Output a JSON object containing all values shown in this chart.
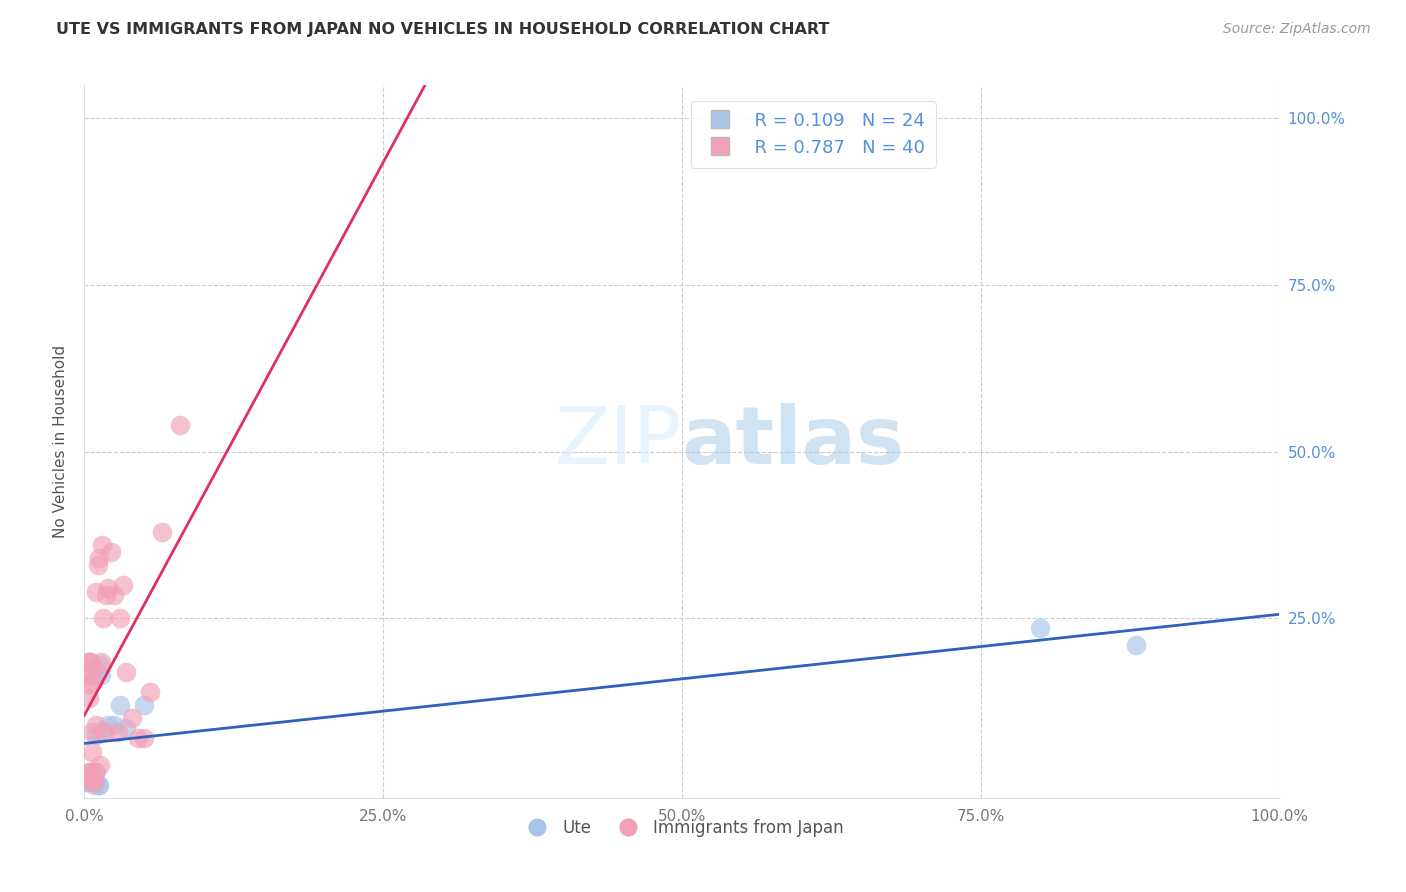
{
  "title": "UTE VS IMMIGRANTS FROM JAPAN NO VEHICLES IN HOUSEHOLD CORRELATION CHART",
  "source": "Source: ZipAtlas.com",
  "ylabel": "No Vehicles in Household",
  "xlim": [
    0,
    1.0
  ],
  "ylim": [
    -0.02,
    1.05
  ],
  "xtick_labels": [
    "0.0%",
    "25.0%",
    "50.0%",
    "75.0%",
    "100.0%"
  ],
  "xtick_vals": [
    0.0,
    0.25,
    0.5,
    0.75,
    1.0
  ],
  "ytick_labels": [
    "100.0%",
    "75.0%",
    "50.0%",
    "25.0%"
  ],
  "ytick_vals": [
    1.0,
    0.75,
    0.5,
    0.25
  ],
  "legend_r_ute": "R = 0.109",
  "legend_n_ute": "N = 24",
  "legend_r_japan": "R = 0.787",
  "legend_n_japan": "N = 40",
  "ute_color": "#a8c4e8",
  "japan_color": "#f2a0b5",
  "ute_line_color": "#3060c0",
  "japan_line_color": "#e03060",
  "background_color": "#ffffff",
  "grid_color": "#cccccc",
  "ute_x": [
    0.0,
    0.003,
    0.004,
    0.005,
    0.006,
    0.006,
    0.007,
    0.008,
    0.008,
    0.009,
    0.01,
    0.01,
    0.011,
    0.012,
    0.013,
    0.014,
    0.015,
    0.02,
    0.025,
    0.03,
    0.035,
    0.05,
    0.8,
    0.88
  ],
  "ute_y": [
    0.005,
    0.005,
    0.01,
    0.185,
    0.005,
    0.02,
    0.01,
    0.0,
    0.165,
    0.005,
    0.02,
    0.075,
    0.0,
    0.0,
    0.18,
    0.165,
    0.08,
    0.09,
    0.09,
    0.12,
    0.085,
    0.12,
    0.235,
    0.21
  ],
  "japan_x": [
    0.0,
    0.001,
    0.002,
    0.003,
    0.003,
    0.004,
    0.004,
    0.005,
    0.005,
    0.005,
    0.006,
    0.006,
    0.007,
    0.007,
    0.008,
    0.008,
    0.009,
    0.01,
    0.01,
    0.011,
    0.012,
    0.013,
    0.014,
    0.015,
    0.016,
    0.017,
    0.018,
    0.02,
    0.022,
    0.025,
    0.028,
    0.03,
    0.032,
    0.035,
    0.04,
    0.045,
    0.05,
    0.055,
    0.065,
    0.08
  ],
  "japan_y": [
    0.015,
    0.01,
    0.015,
    0.15,
    0.185,
    0.02,
    0.13,
    0.185,
    0.165,
    0.02,
    0.05,
    0.08,
    0.155,
    0.005,
    0.005,
    0.175,
    0.02,
    0.09,
    0.29,
    0.33,
    0.34,
    0.03,
    0.185,
    0.36,
    0.25,
    0.08,
    0.285,
    0.295,
    0.35,
    0.285,
    0.08,
    0.25,
    0.3,
    0.17,
    0.1,
    0.07,
    0.07,
    0.14,
    0.38,
    0.54
  ]
}
